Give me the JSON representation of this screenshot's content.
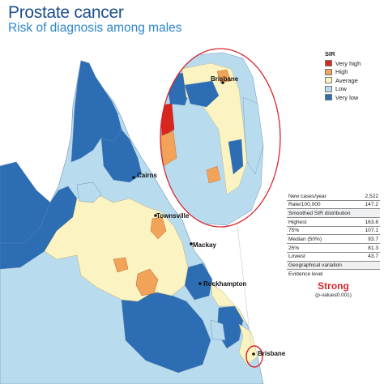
{
  "header": {
    "title": "Prostate cancer",
    "subtitle": "Risk of diagnosis among males"
  },
  "legend": {
    "heading": "SIR",
    "items": [
      {
        "label": "Very high",
        "color": "#d7261e"
      },
      {
        "label": "High",
        "color": "#f3a25a"
      },
      {
        "label": "Average",
        "color": "#fbf4c2"
      },
      {
        "label": "Low",
        "color": "#b9dbee"
      },
      {
        "label": "Very low",
        "color": "#2c6db3"
      }
    ]
  },
  "stats": {
    "new_cases_label": "New cases/year",
    "new_cases_value": "2,522",
    "rate_label": "Rate/100,000",
    "rate_value": "147.2",
    "dist_heading": "Smoothed SIR distribution",
    "highest_label": "Highest",
    "highest_value": "163.8",
    "p75_label": "75%",
    "p75_value": "107.1",
    "median_label": "Median (50%)",
    "median_value": "93.7",
    "p25_label": "25%",
    "p25_value": "81.3",
    "lowest_label": "Lowest",
    "lowest_value": "43.7",
    "geo_heading": "Geographical variation",
    "evidence_label": "Evidence level",
    "evidence_value": "Strong",
    "pvalue": "(p-value≤0.001)"
  },
  "cities": {
    "cairns": "Cairns",
    "townsville": "Townsville",
    "mackay": "Mackay",
    "rockhampton": "Rockhampton",
    "brisbane": "Brisbane",
    "inset_brisbane": "Brisbane"
  }
}
